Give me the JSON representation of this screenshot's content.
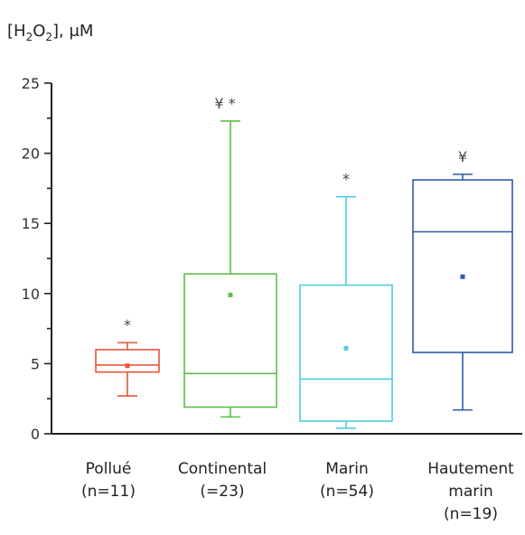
{
  "chart_data": {
    "type": "box",
    "ylabel_parts": [
      "[H",
      "2",
      "O",
      "2",
      "], μM"
    ],
    "ylim": [
      0,
      25
    ],
    "yticks": [
      0,
      5,
      10,
      15,
      20,
      25
    ],
    "categories": [
      {
        "name": "Pollué",
        "n_label": "(n=11)",
        "color": "#e8543a",
        "whisker_low": 2.7,
        "q1": 4.4,
        "median": 4.9,
        "q3": 6.0,
        "whisker_high": 6.5,
        "mean": 4.85,
        "markers": "*"
      },
      {
        "name": "Continental",
        "n_label": "(=23)",
        "color": "#5bbf4a",
        "whisker_low": 1.2,
        "q1": 1.9,
        "median": 4.3,
        "q3": 11.4,
        "whisker_high": 22.3,
        "mean": 9.9,
        "markers": "¥ *"
      },
      {
        "name": "Marin",
        "n_label": "(n=54)",
        "color": "#4fcde0",
        "whisker_low": 0.4,
        "q1": 0.9,
        "median": 3.9,
        "q3": 10.6,
        "whisker_high": 16.9,
        "mean": 6.1,
        "markers": "*"
      },
      {
        "name": "Hautement marin",
        "name_lines": [
          "Hautement",
          "marin"
        ],
        "n_label": "(n=19)",
        "color": "#2f5aa8",
        "whisker_low": 1.7,
        "q1": 5.8,
        "median": 14.4,
        "q3": 18.1,
        "whisker_high": 18.5,
        "mean": 11.2,
        "markers": "¥"
      }
    ]
  }
}
